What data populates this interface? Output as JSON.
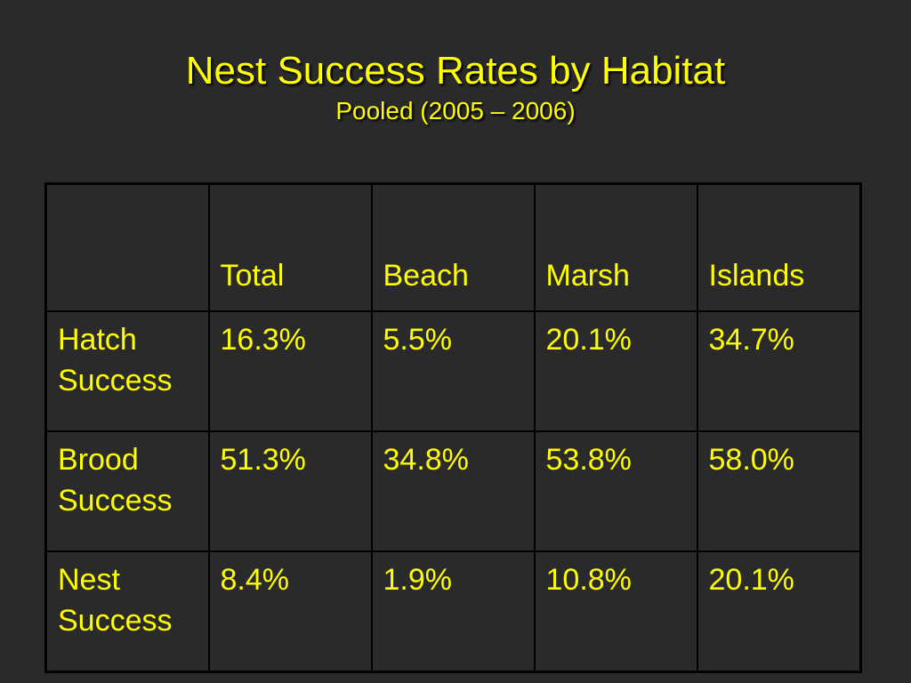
{
  "slide": {
    "title": "Nest Success Rates by Habitat",
    "subtitle": "Pooled (2005 – 2006)"
  },
  "table": {
    "headers": [
      "",
      "Total",
      "Beach",
      "Marsh",
      "Islands"
    ],
    "rows": [
      {
        "label_line1": "Hatch",
        "label_line2": "Success",
        "values": [
          "16.3%",
          "5.5%",
          "20.1%",
          "34.7%"
        ]
      },
      {
        "label_line1": "Brood",
        "label_line2": "Success",
        "values": [
          "51.3%",
          "34.8%",
          "53.8%",
          "58.0%"
        ]
      },
      {
        "label_line1": "Nest",
        "label_line2": "Success",
        "values": [
          "8.4%",
          "1.9%",
          "10.8%",
          "20.1%"
        ]
      }
    ]
  },
  "colors": {
    "background": "#2a2a2a",
    "text": "#ffff00",
    "grid": "#000000"
  }
}
